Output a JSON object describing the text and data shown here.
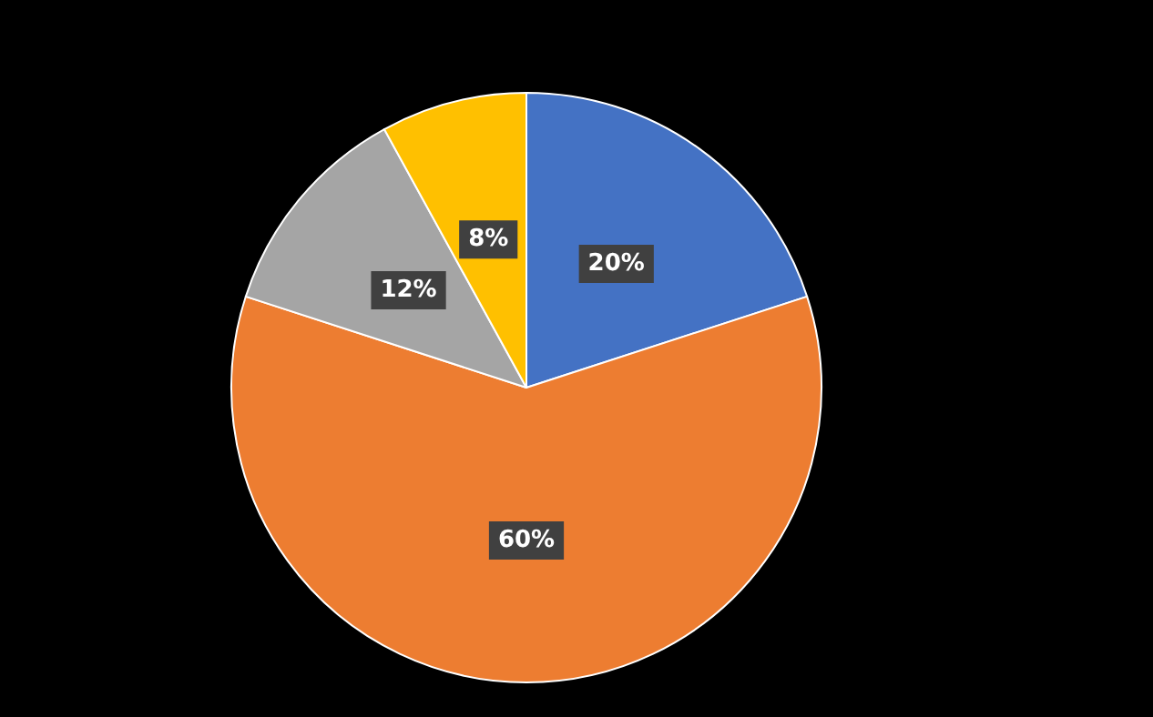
{
  "chart_data": {
    "type": "pie",
    "categories": [
      null,
      null,
      null,
      null
    ],
    "values": [
      20,
      60,
      12,
      8
    ],
    "colors": [
      "#4472c4",
      "#ed7d31",
      "#a5a5a5",
      "#ffc000"
    ],
    "value_labels": [
      "20%",
      "60%",
      "12%",
      "8%"
    ]
  }
}
